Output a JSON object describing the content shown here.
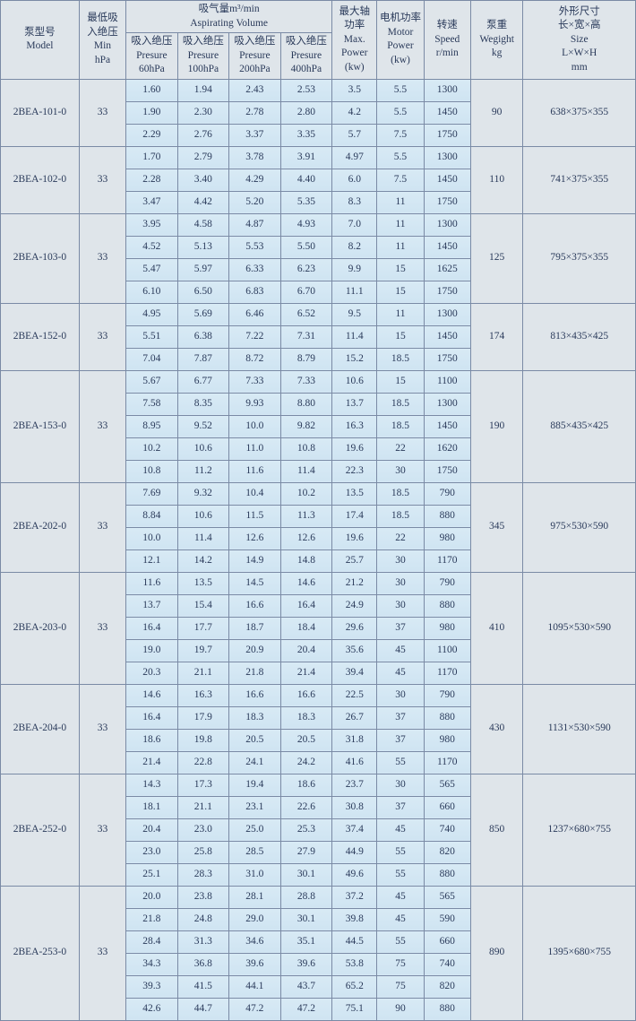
{
  "headers": {
    "model": "泵型号\nModel",
    "minhpa": "最低吸\n入绝压\nMin\nhPa",
    "aspirating": "吸气量m³/min\nAspirating Volume",
    "pres60": "吸入绝压\nPresure\n60hPa",
    "pres100": "吸入绝压\nPresure\n100hPa",
    "pres200": "吸入绝压\nPresure\n200hPa",
    "pres400": "吸入绝压\nPresure\n400hPa",
    "maxpow": "最大轴\n功率\nMax.\nPower\n(kw)",
    "motor": "电机功率\nMotor\nPower\n(kw)",
    "speed": "转速\nSpeed\nr/min",
    "weight": "泵重\nWegight\nkg",
    "size": "外形尺寸\n长×宽×高\nSize\nL×W×H\nmm"
  },
  "groups": [
    {
      "model": "2BEA-101-0",
      "minhpa": "33",
      "weight": "90",
      "size": "638×375×355",
      "rows": [
        [
          "1.60",
          "1.94",
          "2.43",
          "2.53",
          "3.5",
          "5.5",
          "1300"
        ],
        [
          "1.90",
          "2.30",
          "2.78",
          "2.80",
          "4.2",
          "5.5",
          "1450"
        ],
        [
          "2.29",
          "2.76",
          "3.37",
          "3.35",
          "5.7",
          "7.5",
          "1750"
        ]
      ]
    },
    {
      "model": "2BEA-102-0",
      "minhpa": "33",
      "weight": "110",
      "size": "741×375×355",
      "rows": [
        [
          "1.70",
          "2.79",
          "3.78",
          "3.91",
          "4.97",
          "5.5",
          "1300"
        ],
        [
          "2.28",
          "3.40",
          "4.29",
          "4.40",
          "6.0",
          "7.5",
          "1450"
        ],
        [
          "3.47",
          "4.42",
          "5.20",
          "5.35",
          "8.3",
          "11",
          "1750"
        ]
      ]
    },
    {
      "model": "2BEA-103-0",
      "minhpa": "33",
      "weight": "125",
      "size": "795×375×355",
      "rows": [
        [
          "3.95",
          "4.58",
          "4.87",
          "4.93",
          "7.0",
          "11",
          "1300"
        ],
        [
          "4.52",
          "5.13",
          "5.53",
          "5.50",
          "8.2",
          "11",
          "1450"
        ],
        [
          "5.47",
          "5.97",
          "6.33",
          "6.23",
          "9.9",
          "15",
          "1625"
        ],
        [
          "6.10",
          "6.50",
          "6.83",
          "6.70",
          "11.1",
          "15",
          "1750"
        ]
      ]
    },
    {
      "model": "2BEA-152-0",
      "minhpa": "33",
      "weight": "174",
      "size": "813×435×425",
      "rows": [
        [
          "4.95",
          "5.69",
          "6.46",
          "6.52",
          "9.5",
          "11",
          "1300"
        ],
        [
          "5.51",
          "6.38",
          "7.22",
          "7.31",
          "11.4",
          "15",
          "1450"
        ],
        [
          "7.04",
          "7.87",
          "8.72",
          "8.79",
          "15.2",
          "18.5",
          "1750"
        ]
      ]
    },
    {
      "model": "2BEA-153-0",
      "minhpa": "33",
      "weight": "190",
      "size": "885×435×425",
      "rows": [
        [
          "5.67",
          "6.77",
          "7.33",
          "7.33",
          "10.6",
          "15",
          "1100"
        ],
        [
          "7.58",
          "8.35",
          "9.93",
          "8.80",
          "13.7",
          "18.5",
          "1300"
        ],
        [
          "8.95",
          "9.52",
          "10.0",
          "9.82",
          "16.3",
          "18.5",
          "1450"
        ],
        [
          "10.2",
          "10.6",
          "11.0",
          "10.8",
          "19.6",
          "22",
          "1620"
        ],
        [
          "10.8",
          "11.2",
          "11.6",
          "11.4",
          "22.3",
          "30",
          "1750"
        ]
      ]
    },
    {
      "model": "2BEA-202-0",
      "minhpa": "33",
      "weight": "345",
      "size": "975×530×590",
      "rows": [
        [
          "7.69",
          "9.32",
          "10.4",
          "10.2",
          "13.5",
          "18.5",
          "790"
        ],
        [
          "8.84",
          "10.6",
          "11.5",
          "11.3",
          "17.4",
          "18.5",
          "880"
        ],
        [
          "10.0",
          "11.4",
          "12.6",
          "12.6",
          "19.6",
          "22",
          "980"
        ],
        [
          "12.1",
          "14.2",
          "14.9",
          "14.8",
          "25.7",
          "30",
          "1170"
        ]
      ]
    },
    {
      "model": "2BEA-203-0",
      "minhpa": "33",
      "weight": "410",
      "size": "1095×530×590",
      "rows": [
        [
          "11.6",
          "13.5",
          "14.5",
          "14.6",
          "21.2",
          "30",
          "790"
        ],
        [
          "13.7",
          "15.4",
          "16.6",
          "16.4",
          "24.9",
          "30",
          "880"
        ],
        [
          "16.4",
          "17.7",
          "18.7",
          "18.4",
          "29.6",
          "37",
          "980"
        ],
        [
          "19.0",
          "19.7",
          "20.9",
          "20.4",
          "35.6",
          "45",
          "1100"
        ],
        [
          "20.3",
          "21.1",
          "21.8",
          "21.4",
          "39.4",
          "45",
          "1170"
        ]
      ]
    },
    {
      "model": "2BEA-204-0",
      "minhpa": "33",
      "weight": "430",
      "size": "1131×530×590",
      "rows": [
        [
          "14.6",
          "16.3",
          "16.6",
          "16.6",
          "22.5",
          "30",
          "790"
        ],
        [
          "16.4",
          "17.9",
          "18.3",
          "18.3",
          "26.7",
          "37",
          "880"
        ],
        [
          "18.6",
          "19.8",
          "20.5",
          "20.5",
          "31.8",
          "37",
          "980"
        ],
        [
          "21.4",
          "22.8",
          "24.1",
          "24.2",
          "41.6",
          "55",
          "1170"
        ]
      ]
    },
    {
      "model": "2BEA-252-0",
      "minhpa": "33",
      "weight": "850",
      "size": "1237×680×755",
      "rows": [
        [
          "14.3",
          "17.3",
          "19.4",
          "18.6",
          "23.7",
          "30",
          "565"
        ],
        [
          "18.1",
          "21.1",
          "23.1",
          "22.6",
          "30.8",
          "37",
          "660"
        ],
        [
          "20.4",
          "23.0",
          "25.0",
          "25.3",
          "37.4",
          "45",
          "740"
        ],
        [
          "23.0",
          "25.8",
          "28.5",
          "27.9",
          "44.9",
          "55",
          "820"
        ],
        [
          "25.1",
          "28.3",
          "31.0",
          "30.1",
          "49.6",
          "55",
          "880"
        ]
      ]
    },
    {
      "model": "2BEA-253-0",
      "minhpa": "33",
      "weight": "890",
      "size": "1395×680×755",
      "rows": [
        [
          "20.0",
          "23.8",
          "28.1",
          "28.8",
          "37.2",
          "45",
          "565"
        ],
        [
          "21.8",
          "24.8",
          "29.0",
          "30.1",
          "39.8",
          "45",
          "590"
        ],
        [
          "28.4",
          "31.3",
          "34.6",
          "35.1",
          "44.5",
          "55",
          "660"
        ],
        [
          "34.3",
          "36.8",
          "39.6",
          "39.6",
          "53.8",
          "75",
          "740"
        ],
        [
          "39.3",
          "41.5",
          "44.1",
          "43.7",
          "65.2",
          "75",
          "820"
        ],
        [
          "42.6",
          "44.7",
          "47.2",
          "47.2",
          "75.1",
          "90",
          "880"
        ]
      ]
    }
  ],
  "colors": {
    "data_bg": "#cfe4f2",
    "header_bg": "#dfe5ea",
    "border": "#7a8aa5",
    "text": "#2a3a5a"
  }
}
